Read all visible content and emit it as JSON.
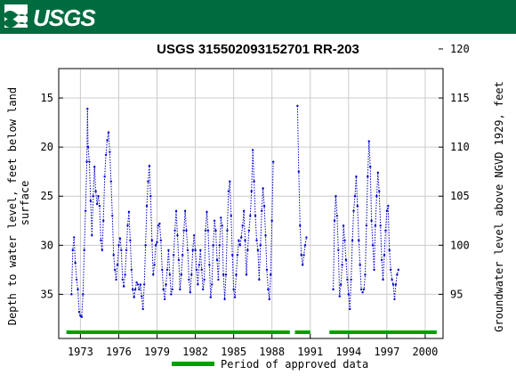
{
  "header": {
    "logo_text": "USGS",
    "brand_color": "#006b3f"
  },
  "chart_data": {
    "type": "scatter",
    "title": "USGS 315502093152701 RR-203",
    "ylabel_left": "Depth to water level, feet below land surface",
    "ylabel_right": "Groundwater level above NGVD 1929, feet",
    "xlabel": "",
    "x_range": [
      1971.3,
      2001.4
    ],
    "xticks": [
      "1973",
      "1976",
      "1979",
      "1982",
      "1985",
      "1988",
      "1991",
      "1994",
      "1997",
      "2000"
    ],
    "ylim_left": [
      39.5,
      12.0
    ],
    "yticks_left": [
      "15",
      "20",
      "25",
      "30",
      "35"
    ],
    "yticks_right": [
      "120",
      "115",
      "110",
      "105",
      "100",
      "95"
    ],
    "right_axis_offset": 130.0,
    "grid": true,
    "series_color": "#0000cc",
    "period_color": "#00a000",
    "legend_label": "Period of approved data",
    "legend_position": "bottom",
    "segments": [
      [
        [
          1972.3,
          35.0
        ],
        [
          1972.4,
          30.5
        ],
        [
          1972.5,
          29.2
        ],
        [
          1972.6,
          31.8
        ],
        [
          1972.7,
          33.5
        ],
        [
          1972.8,
          34.5
        ],
        [
          1972.9,
          36.8
        ],
        [
          1973.0,
          37.2
        ],
        [
          1973.1,
          37.3
        ],
        [
          1973.2,
          35.0
        ],
        [
          1973.3,
          30.5
        ],
        [
          1973.4,
          26.5
        ],
        [
          1973.5,
          21.5
        ],
        [
          1973.55,
          16.1
        ],
        [
          1973.6,
          20.0
        ],
        [
          1973.7,
          21.5
        ],
        [
          1973.8,
          25.5
        ],
        [
          1973.9,
          29.0
        ],
        [
          1974.0,
          25.0
        ],
        [
          1974.1,
          22.0
        ],
        [
          1974.2,
          24.5
        ],
        [
          1974.3,
          25.8
        ],
        [
          1974.4,
          25.0
        ],
        [
          1974.5,
          26.0
        ],
        [
          1974.6,
          29.5
        ],
        [
          1974.7,
          30.5
        ],
        [
          1974.8,
          27.5
        ],
        [
          1974.9,
          23.0
        ],
        [
          1975.0,
          20.8
        ],
        [
          1975.1,
          19.3
        ],
        [
          1975.2,
          18.5
        ],
        [
          1975.3,
          20.5
        ],
        [
          1975.4,
          23.5
        ],
        [
          1975.5,
          27.0
        ],
        [
          1975.6,
          31.0
        ],
        [
          1975.7,
          32.5
        ],
        [
          1975.8,
          33.5
        ],
        [
          1975.9,
          32.0
        ],
        [
          1976.0,
          30.0
        ],
        [
          1976.1,
          29.3
        ],
        [
          1976.2,
          30.5
        ],
        [
          1976.3,
          33.5
        ],
        [
          1976.4,
          34.2
        ],
        [
          1976.5,
          33.0
        ],
        [
          1976.6,
          30.5
        ],
        [
          1976.7,
          28.0
        ],
        [
          1976.8,
          26.6
        ],
        [
          1976.9,
          29.5
        ],
        [
          1977.0,
          32.5
        ],
        [
          1977.1,
          34.5
        ],
        [
          1977.2,
          35.3
        ],
        [
          1977.3,
          34.5
        ],
        [
          1977.4,
          33.8
        ],
        [
          1977.5,
          34.0
        ],
        [
          1977.6,
          34.5
        ],
        [
          1977.7,
          34.0
        ],
        [
          1977.8,
          35.2
        ],
        [
          1977.9,
          36.5
        ],
        [
          1978.0,
          34.0
        ],
        [
          1978.1,
          30.0
        ],
        [
          1978.2,
          26.0
        ],
        [
          1978.3,
          23.5
        ],
        [
          1978.4,
          21.9
        ],
        [
          1978.5,
          25.0
        ],
        [
          1978.6,
          29.5
        ],
        [
          1978.7,
          33.0
        ],
        [
          1978.8,
          32.0
        ],
        [
          1978.9,
          30.0
        ],
        [
          1979.0,
          29.7
        ],
        [
          1979.1,
          28.0
        ],
        [
          1979.2,
          27.8
        ],
        [
          1979.3,
          29.5
        ],
        [
          1979.4,
          32.5
        ],
        [
          1979.5,
          34.5
        ],
        [
          1979.6,
          35.5
        ],
        [
          1979.7,
          34.0
        ],
        [
          1979.8,
          32.5
        ],
        [
          1979.9,
          30.5
        ],
        [
          1980.0,
          33.0
        ],
        [
          1980.1,
          35.0
        ],
        [
          1980.2,
          34.5
        ],
        [
          1980.3,
          31.0
        ],
        [
          1980.4,
          28.5
        ],
        [
          1980.5,
          26.5
        ],
        [
          1980.6,
          29.0
        ],
        [
          1980.7,
          31.5
        ],
        [
          1980.8,
          34.5
        ],
        [
          1980.9,
          33.0
        ],
        [
          1981.0,
          31.0
        ],
        [
          1981.1,
          28.5
        ],
        [
          1981.2,
          26.5
        ],
        [
          1981.3,
          28.5
        ],
        [
          1981.4,
          30.5
        ],
        [
          1981.5,
          33.5
        ],
        [
          1981.6,
          34.8
        ],
        [
          1981.7,
          33.0
        ],
        [
          1981.8,
          30.5
        ],
        [
          1981.9,
          29.0
        ],
        [
          1982.0,
          30.5
        ],
        [
          1982.1,
          32.5
        ],
        [
          1982.2,
          34.0
        ],
        [
          1982.3,
          32.0
        ],
        [
          1982.4,
          30.5
        ],
        [
          1982.5,
          32.5
        ],
        [
          1982.6,
          34.5
        ],
        [
          1982.7,
          33.5
        ],
        [
          1982.8,
          28.5
        ],
        [
          1982.9,
          26.6
        ],
        [
          1983.0,
          28.5
        ],
        [
          1983.1,
          32.0
        ],
        [
          1983.2,
          35.3
        ],
        [
          1983.3,
          34.0
        ],
        [
          1983.4,
          30.0
        ],
        [
          1983.5,
          27.5
        ],
        [
          1983.6,
          28.5
        ],
        [
          1983.7,
          31.5
        ],
        [
          1983.8,
          33.5
        ],
        [
          1983.9,
          30.0
        ],
        [
          1984.0,
          27.2
        ],
        [
          1984.1,
          28.0
        ],
        [
          1984.2,
          33.0
        ],
        [
          1984.3,
          35.5
        ],
        [
          1984.4,
          33.0
        ],
        [
          1984.5,
          28.5
        ],
        [
          1984.6,
          24.5
        ],
        [
          1984.7,
          23.5
        ],
        [
          1984.8,
          27.0
        ],
        [
          1984.9,
          31.0
        ],
        [
          1985.0,
          34.5
        ],
        [
          1985.1,
          35.3
        ],
        [
          1985.2,
          33.0
        ],
        [
          1985.3,
          31.0
        ],
        [
          1985.4,
          29.5
        ],
        [
          1985.5,
          30.0
        ],
        [
          1985.6,
          29.2
        ],
        [
          1985.7,
          28.0
        ],
        [
          1985.8,
          26.5
        ],
        [
          1985.9,
          29.5
        ],
        [
          1986.0,
          33.0
        ],
        [
          1986.1,
          30.5
        ],
        [
          1986.2,
          28.5
        ],
        [
          1986.3,
          27.0
        ],
        [
          1986.4,
          24.5
        ],
        [
          1986.5,
          20.3
        ],
        [
          1986.6,
          23.5
        ],
        [
          1986.7,
          27.0
        ],
        [
          1986.8,
          29.5
        ],
        [
          1986.9,
          30.5
        ],
        [
          1987.0,
          33.5
        ],
        [
          1987.1,
          30.0
        ],
        [
          1987.2,
          26.5
        ],
        [
          1987.3,
          24.2
        ],
        [
          1987.4,
          26.0
        ],
        [
          1987.5,
          29.0
        ],
        [
          1987.6,
          32.5
        ],
        [
          1987.7,
          34.5
        ],
        [
          1987.8,
          35.5
        ],
        [
          1987.9,
          33.0
        ],
        [
          1988.0,
          27.5
        ],
        [
          1988.1,
          21.5
        ]
      ],
      [
        [
          1990.0,
          15.8
        ],
        [
          1990.1,
          22.5
        ],
        [
          1990.2,
          28.0
        ],
        [
          1990.3,
          31.0
        ],
        [
          1990.4,
          32.0
        ],
        [
          1990.5,
          31.0
        ],
        [
          1990.6,
          30.0
        ],
        [
          1990.7,
          29.2
        ]
      ],
      [
        [
          1992.8,
          34.5
        ],
        [
          1992.9,
          27.5
        ],
        [
          1993.0,
          25.0
        ],
        [
          1993.1,
          27.0
        ],
        [
          1993.2,
          30.5
        ],
        [
          1993.3,
          35.2
        ],
        [
          1993.4,
          34.0
        ],
        [
          1993.5,
          32.0
        ],
        [
          1993.6,
          28.0
        ],
        [
          1993.7,
          29.5
        ],
        [
          1993.8,
          31.5
        ],
        [
          1993.9,
          33.5
        ],
        [
          1994.0,
          35.0
        ],
        [
          1994.1,
          36.5
        ],
        [
          1994.2,
          33.5
        ],
        [
          1994.3,
          29.5
        ],
        [
          1994.4,
          26.5
        ],
        [
          1994.5,
          25.0
        ],
        [
          1994.6,
          23.0
        ],
        [
          1994.7,
          26.0
        ],
        [
          1994.8,
          29.5
        ],
        [
          1994.9,
          32.0
        ],
        [
          1995.0,
          34.5
        ],
        [
          1995.1,
          34.8
        ],
        [
          1995.2,
          34.5
        ],
        [
          1995.3,
          33.0
        ],
        [
          1995.4,
          28.0
        ],
        [
          1995.5,
          23.0
        ],
        [
          1995.6,
          19.4
        ],
        [
          1995.7,
          22.0
        ],
        [
          1995.8,
          27.5
        ],
        [
          1995.9,
          30.0
        ],
        [
          1996.0,
          32.5
        ],
        [
          1996.1,
          28.0
        ],
        [
          1996.2,
          25.0
        ],
        [
          1996.3,
          22.6
        ],
        [
          1996.4,
          24.5
        ],
        [
          1996.5,
          28.0
        ],
        [
          1996.6,
          31.5
        ],
        [
          1996.7,
          33.5
        ],
        [
          1996.8,
          31.0
        ],
        [
          1996.9,
          28.5
        ],
        [
          1997.0,
          26.5
        ],
        [
          1997.1,
          26.0
        ],
        [
          1997.2,
          30.5
        ],
        [
          1997.3,
          32.5
        ],
        [
          1997.4,
          33.5
        ],
        [
          1997.5,
          34.0
        ],
        [
          1997.6,
          35.5
        ],
        [
          1997.7,
          34.0
        ],
        [
          1997.8,
          33.0
        ],
        [
          1997.9,
          32.5
        ]
      ]
    ],
    "approved_periods": [
      [
        1971.9,
        1989.4
      ],
      [
        1989.8,
        1991.0
      ],
      [
        1992.5,
        2000.9
      ]
    ]
  }
}
